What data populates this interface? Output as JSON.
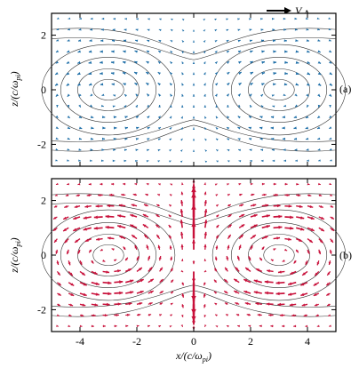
{
  "chart_data": [
    {
      "type": "quiver",
      "panel_label": "(a)",
      "vector_color": "#1f6fa8",
      "xlim": [
        -5,
        5
      ],
      "ylim": [
        -2.8,
        2.8
      ],
      "xticks": [
        -4,
        -2,
        0,
        2,
        4
      ],
      "yticks": [
        -2,
        0,
        2
      ],
      "ytick_labels": [
        "-2",
        "0",
        "2"
      ],
      "xlabel": "",
      "ylabel": "z/(c/ω_pi)",
      "legend_label": "V_A",
      "field": {
        "pattern": "two counter-rotating lobes in flux surfaces, weak near center",
        "lobe_centers": [
          [
            -3,
            0
          ],
          [
            3,
            0
          ]
        ],
        "max_arrow_scale": 0.45
      }
    },
    {
      "type": "quiver",
      "panel_label": "(b)",
      "vector_color": "#c8103a",
      "xlim": [
        -5,
        5
      ],
      "ylim": [
        -2.8,
        2.8
      ],
      "xticks": [
        -4,
        -2,
        0,
        2,
        4
      ],
      "xtick_labels": [
        "-4",
        "-2",
        "0",
        "2",
        "4"
      ],
      "yticks": [
        -2,
        0,
        2
      ],
      "ytick_labels": [
        "-2",
        "0",
        "2"
      ],
      "xlabel": "x/(c/ω_pi)",
      "ylabel": "z/(c/ω_pi)",
      "field": {
        "pattern": "strong vertical jets at x=0 plus circulation",
        "lobe_centers": [
          [
            -3,
            0
          ],
          [
            3,
            0
          ]
        ],
        "max_arrow_scale": 0.9
      }
    }
  ],
  "labels": {
    "top_legend": "V",
    "top_legend_sub": "A",
    "ylabel_a": "z/(c/ω",
    "ylabel_a_sub": "pi",
    "ylabel_b": "z/(c/ω",
    "ylabel_b_sub": "pi",
    "xlabel": "x/(c/ω",
    "xlabel_sub": "pi",
    "panel_a": "(a)",
    "panel_b": "(b)"
  }
}
